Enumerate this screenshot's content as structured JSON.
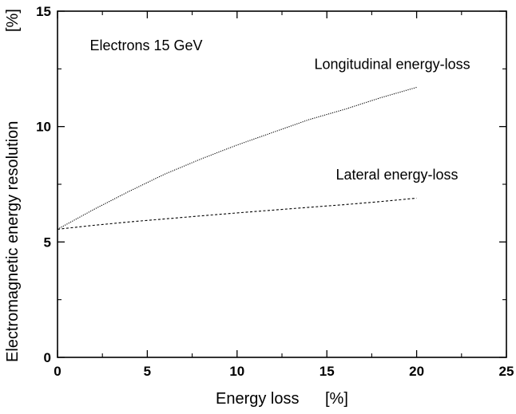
{
  "chart_data": {
    "type": "line",
    "title": "",
    "xlabel": "Energy loss",
    "xlabel_unit": "[%]",
    "ylabel": "Electromagnetic energy resolution",
    "ylabel_unit": "[%]",
    "xlim": [
      0,
      25
    ],
    "ylim": [
      0,
      15
    ],
    "xticks": [
      0,
      5,
      10,
      15,
      20,
      25
    ],
    "yticks": [
      0,
      5,
      10,
      15
    ],
    "xtick_labels": [
      "0",
      "5",
      "10",
      "15",
      "20",
      "25"
    ],
    "ytick_labels": [
      "0",
      "5",
      "10",
      "15"
    ],
    "grid": false,
    "legend": "none",
    "annotations": [
      {
        "id": "condition",
        "text": "Electrons  15 GeV",
        "anchor": [
          1.8,
          13.3
        ]
      },
      {
        "id": "longitudinal-label",
        "text": "Longitudinal energy-loss",
        "anchor": [
          14.3,
          12.5
        ]
      },
      {
        "id": "lateral-label",
        "text": "Lateral energy-loss",
        "anchor": [
          15.5,
          7.7
        ]
      }
    ],
    "series": [
      {
        "id": "longitudinal",
        "line_style": "dotted",
        "color": "#000000",
        "x": [
          0,
          2,
          4,
          6,
          8,
          10,
          12,
          14,
          16,
          18,
          20
        ],
        "y": [
          5.55,
          6.4,
          7.2,
          7.95,
          8.6,
          9.2,
          9.75,
          10.3,
          10.75,
          11.25,
          11.7
        ]
      },
      {
        "id": "lateral",
        "line_style": "dashed",
        "color": "#000000",
        "x": [
          0,
          2,
          4,
          6,
          8,
          10,
          12,
          14,
          16,
          18,
          20
        ],
        "y": [
          5.55,
          5.72,
          5.87,
          6.0,
          6.13,
          6.26,
          6.38,
          6.5,
          6.62,
          6.75,
          6.9
        ]
      }
    ]
  }
}
